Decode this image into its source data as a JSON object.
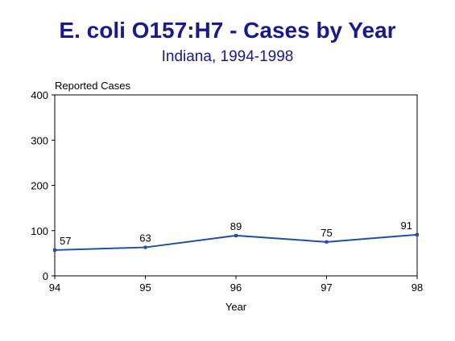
{
  "colors": {
    "title": "#1a1a8c",
    "series": "#1f4fa3",
    "axis": "#000000"
  },
  "chart_data": {
    "type": "line",
    "title": "E. coli O157:H7 - Cases by Year",
    "subtitle": "Indiana, 1994-1998",
    "xlabel": "Year",
    "ylabel": "Reported Cases",
    "categories": [
      "94",
      "95",
      "96",
      "97",
      "98"
    ],
    "series": [
      {
        "values": [
          57,
          63,
          89,
          75,
          91
        ]
      }
    ],
    "ylim": [
      0,
      400
    ],
    "yticks": [
      "0",
      "100",
      "200",
      "300",
      "400"
    ],
    "data_labels": [
      "57",
      "63",
      "89",
      "75",
      "91"
    ],
    "grid": false,
    "legend": "none"
  }
}
